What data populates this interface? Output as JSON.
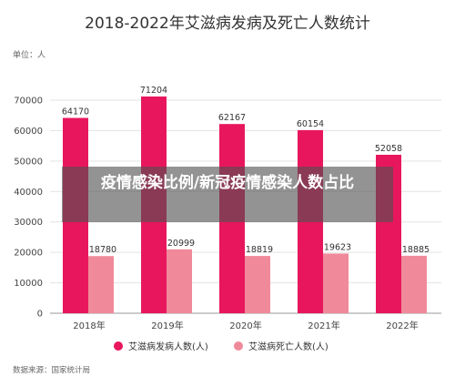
{
  "chart_data": {
    "type": "bar",
    "title": "2018-2022年艾滋病发病及死亡人数统计",
    "unit_label": "单位：人",
    "categories": [
      "2018年",
      "2019年",
      "2020年",
      "2021年",
      "2022年"
    ],
    "series": [
      {
        "name": "艾滋病发病人数(人)",
        "color": "#e8175d",
        "values": [
          64170,
          71204,
          62167,
          60154,
          52058
        ]
      },
      {
        "name": "艾滋病死亡人数(人)",
        "color": "#f08a9b",
        "values": [
          18780,
          20999,
          18819,
          19623,
          18885
        ]
      }
    ],
    "ylim": [
      0,
      70000
    ],
    "yticks": [
      0,
      10000,
      20000,
      30000,
      40000,
      50000,
      60000,
      70000
    ],
    "grid": true,
    "legend_position": "bottom",
    "source": "数据来源：国家统计局"
  },
  "overlay_text": "疫情感染比例/新冠疫情感染人数占比"
}
